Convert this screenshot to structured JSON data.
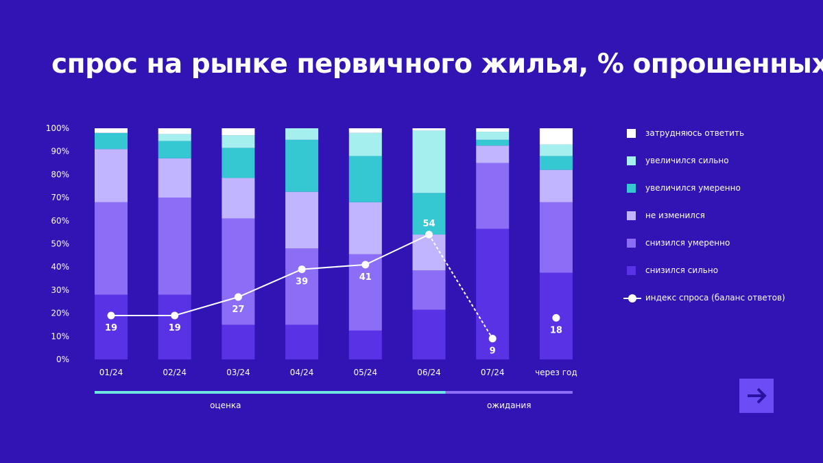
{
  "title": "спрос на рынке первичного жилья, % опрошенных",
  "legend": [
    {
      "label": "затрудняюсь ответить",
      "color": "#ffffff"
    },
    {
      "label": "увеличился сильно",
      "color": "#a6efef"
    },
    {
      "label": "увеличился умеренно",
      "color": "#35c8d3"
    },
    {
      "label": "не изменился",
      "color": "#c2b5ff"
    },
    {
      "label": "снизился умеренно",
      "color": "#8c6ef6"
    },
    {
      "label": "снизился сильно",
      "color": "#5a32e6"
    }
  ],
  "index_legend_label": "индекс спроса (баланс ответов)",
  "next_icon": "arrow-right-icon",
  "chart_data": {
    "type": "bar",
    "stacked": true,
    "title": "спрос на рынке первичного жилья, % опрошенных",
    "categories": [
      "01/24",
      "02/24",
      "03/24",
      "04/24",
      "05/24",
      "06/24",
      "07/24",
      "через год"
    ],
    "y_ticks": [
      "0%",
      "10%",
      "20%",
      "30%",
      "40%",
      "50%",
      "60%",
      "70%",
      "80%",
      "90%",
      "100%"
    ],
    "ylim": [
      0,
      100
    ],
    "series": [
      {
        "name": "снизился сильно",
        "color": "#5a32e6",
        "values": [
          28,
          28,
          15,
          15,
          12.5,
          21.5,
          56.5,
          37.5
        ]
      },
      {
        "name": "снизился умеренно",
        "color": "#8c6ef6",
        "values": [
          40,
          42,
          46,
          33,
          33,
          17,
          28.5,
          30.5
        ]
      },
      {
        "name": "не изменился",
        "color": "#c2b5ff",
        "values": [
          23,
          17,
          17.5,
          24.5,
          22.5,
          15.5,
          7.5,
          14
        ]
      },
      {
        "name": "увеличился умеренно",
        "color": "#35c8d3",
        "values": [
          7,
          7.5,
          13,
          22.5,
          20,
          18,
          2.5,
          6
        ]
      },
      {
        "name": "увеличился сильно",
        "color": "#a6efef",
        "values": [
          0,
          3,
          5.5,
          5,
          10,
          27,
          3.5,
          5
        ]
      },
      {
        "name": "затрудняюсь ответить",
        "color": "#ffffff",
        "values": [
          2,
          2.5,
          3,
          0,
          2,
          1,
          1.5,
          7
        ]
      }
    ],
    "index": {
      "name": "индекс спроса (баланс ответов)",
      "values": [
        19,
        19,
        27,
        39,
        41,
        54,
        9,
        18
      ],
      "labels": [
        "19",
        "19",
        "27",
        "39",
        "41",
        "54",
        "9",
        "18"
      ],
      "solid_to": 5,
      "dashed_from": 5,
      "dashed_to": 6
    },
    "periods": [
      {
        "label": "оценка",
        "from": 0,
        "to": 5,
        "color": "#6be6e0"
      },
      {
        "label": "ожидания",
        "from": 6,
        "to": 7,
        "color": "#8d6ef7"
      }
    ]
  }
}
